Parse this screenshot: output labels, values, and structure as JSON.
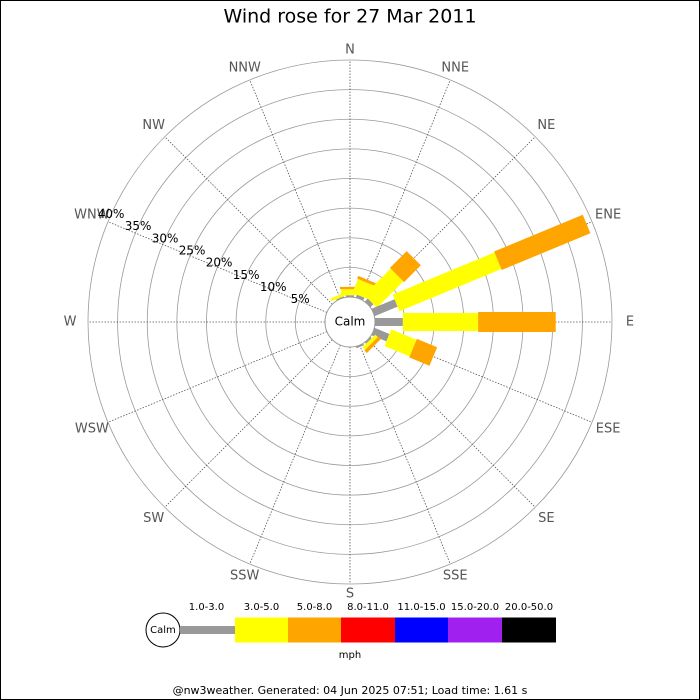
{
  "chart_data": {
    "type": "windrose",
    "title": "Wind rose for 27 Mar 2011",
    "categories": [
      "N",
      "NNE",
      "NE",
      "ENE",
      "E",
      "ESE",
      "SE",
      "SSE",
      "S",
      "SSW",
      "SW",
      "WSW",
      "W",
      "WNW",
      "NW",
      "NNW"
    ],
    "rlim": [
      0,
      40
    ],
    "rticks": [
      {
        "value": 5,
        "label": "5%"
      },
      {
        "value": 10,
        "label": "10%"
      },
      {
        "value": 15,
        "label": "15%"
      },
      {
        "value": 20,
        "label": "20%"
      },
      {
        "value": 25,
        "label": "25%"
      },
      {
        "value": 30,
        "label": "30%"
      },
      {
        "value": 35,
        "label": "35%"
      },
      {
        "value": 40,
        "label": "40%"
      }
    ],
    "center_label": "Calm",
    "series": [
      {
        "name": "1.0-3.0",
        "color": "#999999",
        "values": [
          0.3,
          0.5,
          0.7,
          4.2,
          4.7,
          2.7,
          0.3,
          0.3,
          0,
          0,
          0,
          0,
          0,
          0,
          0,
          0.2
        ]
      },
      {
        "name": "3.0-5.0",
        "color": "#ffff00",
        "values": [
          1,
          2.5,
          6.3,
          18.6,
          12.7,
          4.6,
          0.6,
          0,
          0,
          0,
          0,
          0,
          0,
          0,
          0,
          0.5
        ]
      },
      {
        "name": "5.0-8.0",
        "color": "#ffa500",
        "values": [
          0.4,
          0.5,
          4,
          16.2,
          13.1,
          3.7,
          0.6,
          0,
          0,
          0,
          0,
          0,
          0,
          0,
          0,
          0
        ]
      },
      {
        "name": "8.0-11.0",
        "color": "#ff0000",
        "values": [
          0,
          0,
          0,
          0,
          0,
          0,
          0,
          0,
          0,
          0,
          0,
          0,
          0,
          0,
          0,
          0
        ]
      },
      {
        "name": "11.0-15.0",
        "color": "#0000ff",
        "values": [
          0,
          0,
          0,
          0,
          0,
          0,
          0,
          0,
          0,
          0,
          0,
          0,
          0,
          0,
          0,
          0
        ]
      },
      {
        "name": "15.0-20.0",
        "color": "#a020f0",
        "values": [
          0,
          0,
          0,
          0,
          0,
          0,
          0,
          0,
          0,
          0,
          0,
          0,
          0,
          0,
          0,
          0
        ]
      },
      {
        "name": "20.0-50.0",
        "color": "#000000",
        "values": [
          0,
          0,
          0,
          0,
          0,
          0,
          0,
          0,
          0,
          0,
          0,
          0,
          0,
          0,
          0,
          0
        ]
      }
    ],
    "legend_unit": "mph",
    "footer": "@nw3weather. Generated: 04 Jun 2025 07:51; Load time: 1.61 s"
  }
}
